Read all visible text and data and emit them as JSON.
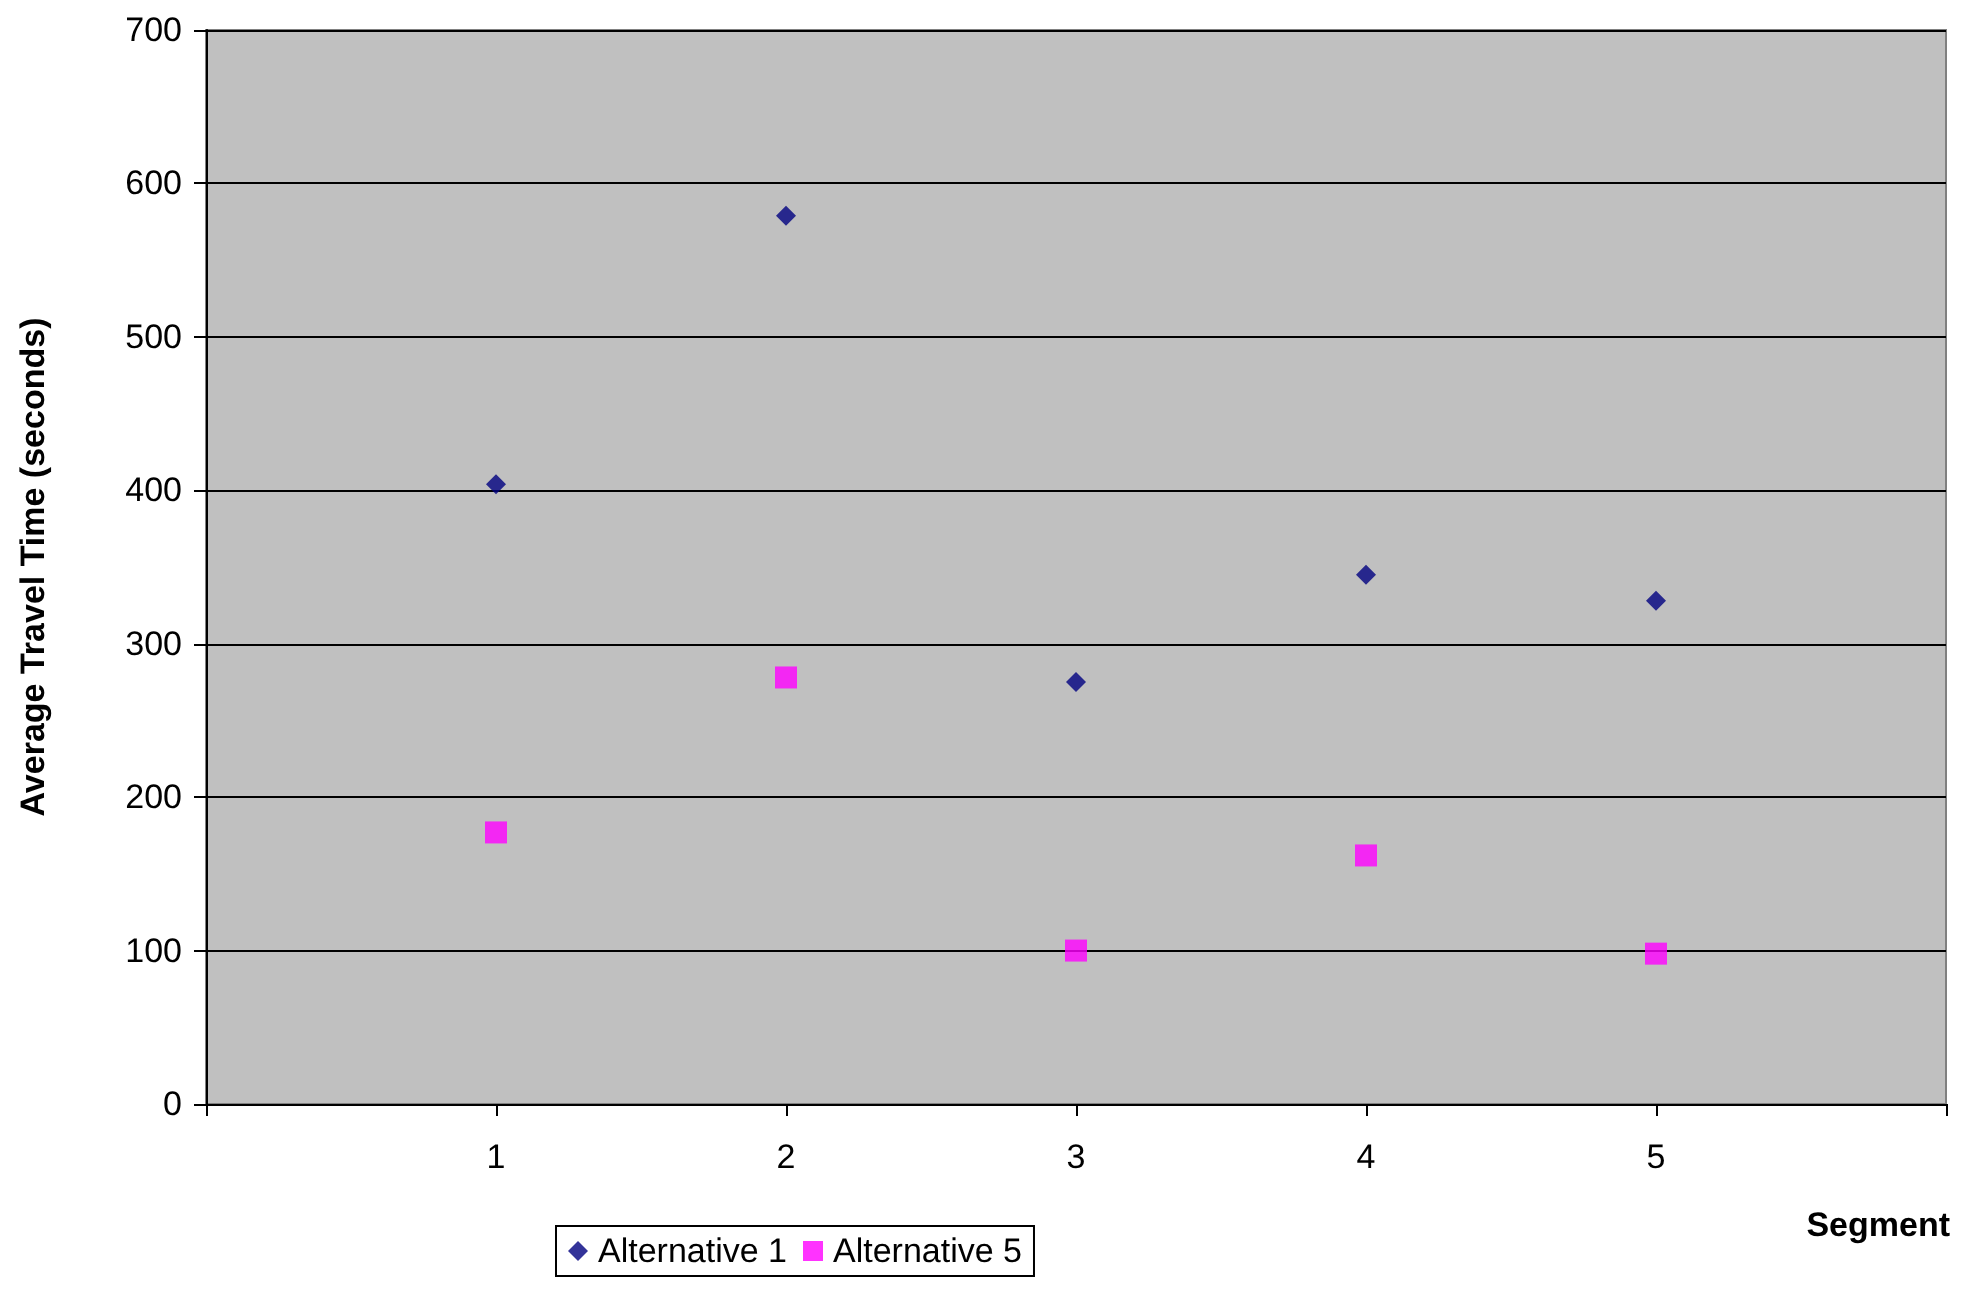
{
  "chart_data": {
    "type": "scatter",
    "xlabel": "Segment",
    "ylabel": "Average Travel Time (seconds)",
    "xlim": [
      0,
      6
    ],
    "xticks": [
      {
        "value": 0,
        "label": null
      },
      1,
      2,
      3,
      4,
      5,
      {
        "value": 6,
        "label": null
      }
    ],
    "ylim": [
      0,
      700
    ],
    "yticks": [
      0,
      100,
      200,
      300,
      400,
      500,
      600,
      700
    ],
    "grid": "y",
    "legend": "bottom",
    "x": [
      1,
      2,
      3,
      4,
      5
    ],
    "series": [
      {
        "name": "Alternative 1",
        "color": "#000080",
        "marker": "diamond",
        "values": [
          404,
          579,
          275,
          345,
          328
        ]
      },
      {
        "name": "Alternative 5",
        "color": "#ff00ff",
        "marker": "square",
        "values": [
          177,
          278,
          100,
          162,
          98
        ]
      }
    ]
  }
}
